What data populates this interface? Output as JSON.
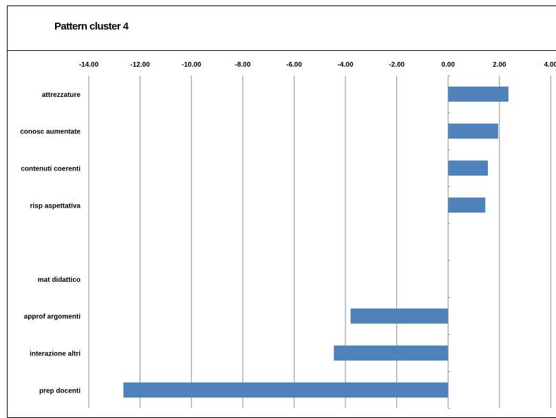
{
  "colors": {
    "bar": "#4f81bd",
    "grid": "#8c8c8c",
    "axis": "#8c8c8c",
    "frame": "#000000"
  },
  "chart_data": {
    "type": "bar",
    "orientation": "horizontal",
    "title": "Pattern cluster 4",
    "xlabel": "",
    "ylabel": "",
    "xlim": [
      -14,
      4
    ],
    "x_ticks": [
      -14,
      -12,
      -10,
      -8,
      -6,
      -4,
      -2,
      0,
      2,
      4
    ],
    "x_tick_labels": [
      "-14.00",
      "-12.00",
      "-10.00",
      "-8.00",
      "-6.00",
      "-4.00",
      "-2.00",
      "0.00",
      "2.00",
      "4.00"
    ],
    "grid": true,
    "legend": "none",
    "categories": [
      "attrezzature",
      "conosc aumentate",
      "contenuti coerenti",
      "risp aspettativa",
      "",
      "mat didattico",
      "approf argomenti",
      "interazione altri",
      "prep docenti"
    ],
    "values": [
      2.35,
      1.95,
      1.55,
      1.45,
      0,
      0,
      -3.8,
      -4.45,
      -12.65
    ]
  }
}
